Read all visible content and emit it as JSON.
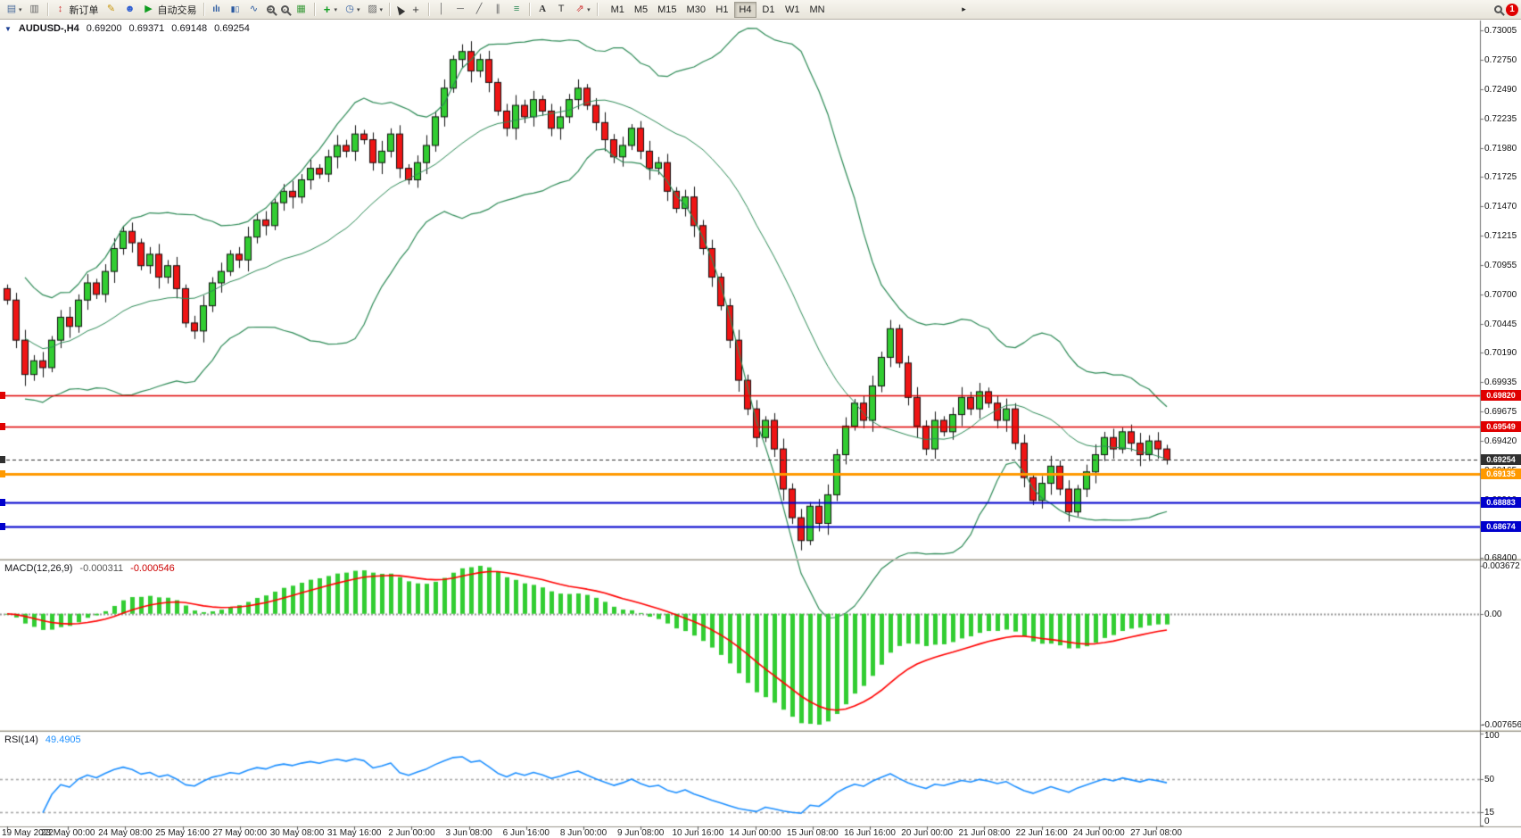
{
  "colors": {
    "up": "#32cd32",
    "down": "#ef1515",
    "wick": "#111111",
    "bollinger": "#2e8b57",
    "macd_hist": "#32cd32",
    "macd_signal": "#ff0000",
    "rsi": "#1e90ff",
    "toolbar_bg": "#eceae2",
    "badge": "#e00000"
  },
  "toolbar": {
    "new_order": "新订单",
    "autotrading": "自动交易",
    "timeframes": [
      "M1",
      "M5",
      "M15",
      "M30",
      "H1",
      "H4",
      "D1",
      "W1",
      "MN"
    ],
    "active_timeframe": "H4",
    "badge_count": "1",
    "text_tool": "A",
    "label_tool": "T"
  },
  "chart": {
    "header": {
      "symbol": "AUDUSD-,H4",
      "open": "0.69200",
      "high": "0.69371",
      "low": "0.69148",
      "close": "0.69254"
    },
    "price_axis": {
      "max": 0.73005,
      "min": 0.684,
      "ticks": [
        "0.73005",
        "0.72750",
        "0.72490",
        "0.72235",
        "0.71980",
        "0.71725",
        "0.71470",
        "0.71215",
        "0.70955",
        "0.70700",
        "0.70445",
        "0.70190",
        "0.69935",
        "0.69675",
        "0.69420",
        "0.69165",
        "0.68910",
        "0.68655",
        "0.68400"
      ]
    },
    "levels": [
      {
        "price": 0.6982,
        "label": "0.69820",
        "color": "#e00000",
        "width": 1.4
      },
      {
        "price": 0.69549,
        "label": "0.69549",
        "color": "#e00000",
        "width": 1.4
      },
      {
        "price": 0.69254,
        "label": "0.69254",
        "color": "#303030",
        "width": 1,
        "dashed": true
      },
      {
        "price": 0.69135,
        "label": "0.69135",
        "color": "#ff9900",
        "width": 3
      },
      {
        "price": 0.68883,
        "label": "0.68883",
        "color": "#0000cd",
        "width": 2
      },
      {
        "price": 0.68674,
        "label": "0.68674",
        "color": "#0000cd",
        "width": 2
      }
    ],
    "candles": {
      "type": "candlestick",
      "first_open": 0.7075,
      "closes": [
        0.7065,
        0.703,
        0.7,
        0.7012,
        0.7006,
        0.703,
        0.705,
        0.7042,
        0.7065,
        0.708,
        0.707,
        0.709,
        0.711,
        0.7125,
        0.7115,
        0.7095,
        0.7105,
        0.7085,
        0.7095,
        0.7075,
        0.7045,
        0.7038,
        0.706,
        0.708,
        0.709,
        0.7105,
        0.71,
        0.712,
        0.7135,
        0.713,
        0.715,
        0.716,
        0.7155,
        0.717,
        0.718,
        0.7175,
        0.719,
        0.72,
        0.7195,
        0.721,
        0.7205,
        0.7185,
        0.7195,
        0.721,
        0.718,
        0.717,
        0.7185,
        0.72,
        0.7225,
        0.725,
        0.7275,
        0.7282,
        0.7265,
        0.7275,
        0.7255,
        0.723,
        0.7215,
        0.7235,
        0.7225,
        0.724,
        0.723,
        0.7215,
        0.7225,
        0.724,
        0.725,
        0.7235,
        0.722,
        0.7205,
        0.719,
        0.72,
        0.7215,
        0.7195,
        0.718,
        0.7185,
        0.716,
        0.7145,
        0.7155,
        0.713,
        0.711,
        0.7085,
        0.706,
        0.703,
        0.6995,
        0.697,
        0.6945,
        0.696,
        0.6935,
        0.69,
        0.6875,
        0.6855,
        0.6885,
        0.687,
        0.6895,
        0.693,
        0.6955,
        0.6975,
        0.696,
        0.699,
        0.7015,
        0.704,
        0.701,
        0.698,
        0.6955,
        0.6935,
        0.696,
        0.695,
        0.6965,
        0.698,
        0.697,
        0.6985,
        0.6975,
        0.696,
        0.697,
        0.694,
        0.691,
        0.689,
        0.6905,
        0.692,
        0.69,
        0.688,
        0.69,
        0.6915,
        0.693,
        0.6945,
        0.6935,
        0.695,
        0.694,
        0.693,
        0.6942,
        0.6935,
        0.69254
      ]
    }
  },
  "macd": {
    "title": "MACD(12,26,9)",
    "value_main": "-0.000311",
    "value_signal": "-0.000546",
    "axis_max": "0.003672",
    "axis_zero": "0.00",
    "axis_min": "-0.007656"
  },
  "rsi": {
    "title": "RSI(14)",
    "value": "49.4905",
    "levels": [
      "100",
      "50",
      "15",
      "0"
    ]
  },
  "time_axis": {
    "labels": [
      "19 May 2022",
      "23 May 00:00",
      "24 May 08:00",
      "25 May 16:00",
      "27 May 00:00",
      "30 May 08:00",
      "31 May 16:00",
      "2 Jun 00:00",
      "3 Jun 08:00",
      "6 Jun 16:00",
      "8 Jun 00:00",
      "9 Jun 08:00",
      "10 Jun 16:00",
      "14 Jun 00:00",
      "15 Jun 08:00",
      "16 Jun 16:00",
      "20 Jun 00:00",
      "21 Jun 08:00",
      "22 Jun 16:00",
      "24 Jun 00:00",
      "27 Jun 08:00"
    ]
  }
}
